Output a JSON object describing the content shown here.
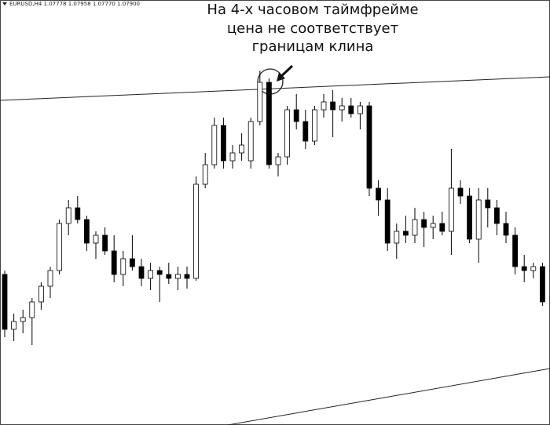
{
  "chart_data": {
    "type": "candlestick",
    "header": "EURUSD,H4 1.07778 1.07958 1.07770 1.07900",
    "annotation": [
      "На 4-х часовом таймфрейме",
      "цена не соответствует",
      "границам клина"
    ],
    "ylim": [
      1.0746,
      1.08
    ],
    "up_color": "#ffffff",
    "down_color": "#000000",
    "wick_color": "#000000",
    "open": [
      1.0765,
      1.0758,
      1.0759,
      1.07595,
      1.07615,
      1.07635,
      1.07655,
      1.07715,
      1.07735,
      1.0772,
      1.0769,
      1.077,
      1.0768,
      1.0765,
      1.0767,
      1.0766,
      1.07645,
      1.07655,
      1.0765,
      1.07645,
      1.0765,
      1.07645,
      1.07765,
      1.0779,
      1.0784,
      1.07795,
      1.07805,
      1.07795,
      1.07845,
      1.07895,
      1.0779,
      1.078,
      1.0786,
      1.07845,
      1.0782,
      1.0786,
      1.0787,
      1.0786,
      1.07865,
      1.07855,
      1.07865,
      1.0776,
      1.07745,
      1.0769,
      1.07705,
      1.077,
      1.0772,
      1.0771,
      1.07715,
      1.07705,
      1.0776,
      1.0775,
      1.07695,
      1.07745,
      1.07735,
      1.07715,
      1.077,
      1.0766,
      1.07655,
      1.0766
    ],
    "high": [
      1.07655,
      1.076,
      1.07605,
      1.0762,
      1.0764,
      1.0766,
      1.0772,
      1.07745,
      1.0775,
      1.07725,
      1.07705,
      1.0771,
      1.077,
      1.0768,
      1.077,
      1.0767,
      1.07665,
      1.0766,
      1.07665,
      1.0766,
      1.0766,
      1.07775,
      1.07805,
      1.0785,
      1.0785,
      1.07815,
      1.0783,
      1.0785,
      1.0791,
      1.079,
      1.07805,
      1.07865,
      1.0788,
      1.0786,
      1.07865,
      1.0788,
      1.07885,
      1.07875,
      1.07875,
      1.0787,
      1.0787,
      1.0777,
      1.0776,
      1.07715,
      1.07725,
      1.07735,
      1.0773,
      1.07725,
      1.0773,
      1.0781,
      1.0777,
      1.0776,
      1.0776,
      1.0776,
      1.07745,
      1.0773,
      1.0771,
      1.07675,
      1.07665,
      1.07665
    ],
    "low": [
      1.0757,
      1.07565,
      1.07575,
      1.0756,
      1.07605,
      1.0762,
      1.0765,
      1.077,
      1.07715,
      1.0768,
      1.0767,
      1.07675,
      1.0764,
      1.07635,
      1.07655,
      1.07635,
      1.0763,
      1.07615,
      1.07638,
      1.0763,
      1.07632,
      1.07642,
      1.0776,
      1.07785,
      1.07785,
      1.07785,
      1.07795,
      1.07785,
      1.0784,
      1.07785,
      1.07775,
      1.0779,
      1.07835,
      1.0781,
      1.07815,
      1.0785,
      1.07825,
      1.07845,
      1.0785,
      1.07835,
      1.0775,
      1.07725,
      1.0768,
      1.0767,
      1.0769,
      1.0769,
      1.07685,
      1.07695,
      1.077,
      1.07675,
      1.0774,
      1.0769,
      1.07665,
      1.0771,
      1.077,
      1.0769,
      1.0765,
      1.0764,
      1.07645,
      1.0761
    ],
    "close": [
      1.0758,
      1.0759,
      1.07595,
      1.07615,
      1.07635,
      1.07655,
      1.07715,
      1.07735,
      1.0772,
      1.0769,
      1.077,
      1.0768,
      1.0765,
      1.0767,
      1.0766,
      1.07645,
      1.07655,
      1.0765,
      1.07645,
      1.0765,
      1.07645,
      1.07765,
      1.0779,
      1.0784,
      1.07795,
      1.07805,
      1.07815,
      1.07845,
      1.07895,
      1.0779,
      1.078,
      1.0786,
      1.07845,
      1.0782,
      1.0786,
      1.0787,
      1.0786,
      1.07865,
      1.07855,
      1.07865,
      1.0776,
      1.07745,
      1.0769,
      1.07705,
      1.077,
      1.0772,
      1.0771,
      1.07715,
      1.07705,
      1.0776,
      1.0775,
      1.07695,
      1.07745,
      1.07735,
      1.07715,
      1.077,
      1.0766,
      1.07655,
      1.0766,
      1.07615
    ]
  }
}
